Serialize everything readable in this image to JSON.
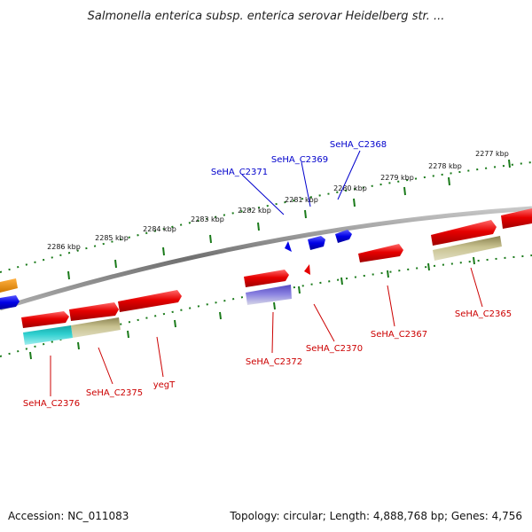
{
  "title": "Salmonella enterica subsp. enterica serovar Heidelberg str. ...",
  "footer": {
    "accession": "Accession: NC_011083",
    "summary": "Topology: circular; Length: 4,888,768 bp; Genes: 4,756"
  },
  "colors": {
    "backbone": "#8a8a8a",
    "forward_gene": "#e60000",
    "reverse_gene": "#0000e6",
    "forward_label": "#cc0000",
    "reverse_label": "#0000cc",
    "tick": "#1a7a1a",
    "olive_feature": "#b5b07a",
    "cyan_feature": "#25c8c8",
    "purple_feature": "#7a70d0",
    "orange_feature": "#f0a020"
  },
  "ticks": [
    {
      "label": "2277 kbp"
    },
    {
      "label": "2278 kbp"
    },
    {
      "label": "2279 kbp"
    },
    {
      "label": "2280 kbp"
    },
    {
      "label": "2281 kbp"
    },
    {
      "label": "2282 kbp"
    },
    {
      "label": "2283 kbp"
    },
    {
      "label": "2284 kbp"
    },
    {
      "label": "2285 kbp"
    },
    {
      "label": "2286 kbp"
    }
  ],
  "gene_labels": [
    {
      "text": "SeHA_C2368",
      "strand": "reverse"
    },
    {
      "text": "SeHA_C2369",
      "strand": "reverse"
    },
    {
      "text": "SeHA_C2371",
      "strand": "reverse"
    },
    {
      "text": "SeHA_C2365",
      "strand": "forward"
    },
    {
      "text": "SeHA_C2367",
      "strand": "forward"
    },
    {
      "text": "SeHA_C2370",
      "strand": "forward"
    },
    {
      "text": "SeHA_C2372",
      "strand": "forward"
    },
    {
      "text": "yegT",
      "strand": "forward"
    },
    {
      "text": "SeHA_C2375",
      "strand": "forward"
    },
    {
      "text": "SeHA_C2376",
      "strand": "forward"
    }
  ]
}
